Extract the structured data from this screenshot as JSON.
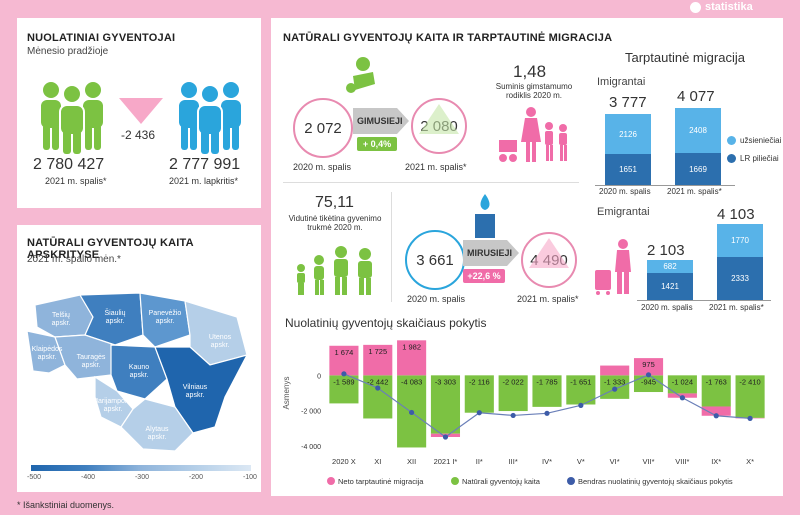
{
  "brand": "statistika",
  "footnote": "* Išankstiniai duomenys.",
  "resident": {
    "title": "NUOLATINIAI GYVENTOJAI",
    "subtitle": "Mėnesio pradžioje",
    "diff": "-2 436",
    "left_value": "2 780 427",
    "left_label": "2021 m. spalis*",
    "right_value": "2 777 991",
    "right_label": "2021 m. lapkritis*",
    "colors": {
      "left": "#7cc242",
      "right": "#2aa5dc",
      "arrow": "#f7a8c8"
    }
  },
  "map": {
    "title": "NATŪRALI GYVENTOJŲ KAITA APSKRITYSE",
    "subtitle": "2021 m. spalio mėn.*",
    "regions": [
      "Telšių apskr.",
      "Šiaulių apskr.",
      "Panevėžio apskr.",
      "Klaipėdos apskr.",
      "Utenos apskr.",
      "Tauragės apskr.",
      "Kauno apskr.",
      "Marijampolės apskr.",
      "Vilniaus apskr.",
      "Alytaus apskr."
    ],
    "scale": [
      "-500",
      "-400",
      "-300",
      "-200",
      "-100"
    ]
  },
  "natural": {
    "title": "NATŪRALI GYVENTOJŲ KAITA IR TARPTAUTINĖ MIGRACIJA",
    "births_label": "GIMUSIEJI",
    "births_prev": "2 072",
    "births_prev_label": "2020 m. spalis",
    "births_cur": "2 080",
    "births_cur_label": "2021 m. spalis*",
    "births_change": "+ 0,4%",
    "fertility_value": "1,48",
    "fertility_label": "Suminis gimstamumo rodiklis 2020 m.",
    "life_value": "75,11",
    "life_label": "Vidutinė tikėtina gyvenimo trukmė 2020 m.",
    "deaths_label": "MIRUSIEJI",
    "deaths_prev": "3 661",
    "deaths_prev_label": "2020 m. spalis",
    "deaths_cur": "4 490",
    "deaths_cur_label": "2021 m. spalis*",
    "deaths_change": "+22,6 %"
  },
  "migration": {
    "title": "Tarptautinė migracija",
    "imm_label": "Imigrantai",
    "emi_label": "Emigrantai",
    "imm": [
      {
        "total": "3 777",
        "foreign": 2126,
        "citizens": 1651,
        "label": "2020 m. spalis"
      },
      {
        "total": "4 077",
        "foreign": 2408,
        "citizens": 1669,
        "label": "2021 m. spalis*"
      }
    ],
    "emi": [
      {
        "total": "2 103",
        "foreign": 682,
        "citizens": 1421,
        "label": "2020 m. spalis"
      },
      {
        "total": "4 103",
        "foreign": 1770,
        "citizens": 2333,
        "label": "2021 m. spalis*"
      }
    ],
    "legend_foreign": "užsieniečiai",
    "legend_citizens": "LR piliečiai",
    "colors": {
      "foreign": "#58b3e8",
      "citizens": "#2c6fae"
    }
  },
  "chart_data": {
    "type": "bar",
    "title": "Nuolatinių gyventojų skaičiaus pokytis",
    "ylabel": "Asmenys",
    "ylim": [
      -4000,
      2000
    ],
    "yticks": [
      "0",
      "-2 000",
      "-4 000"
    ],
    "categories": [
      "2020 X",
      "XI",
      "XII",
      "2021 I*",
      "II*",
      "III*",
      "IV*",
      "V*",
      "VI*",
      "VII*",
      "VIII*",
      "IX*",
      "X*"
    ],
    "series": [
      {
        "name": "Neto tarptautinė migracija",
        "color": "#f06ca8",
        "values": [
          1674,
          1725,
          1982,
          -187,
          0,
          0,
          0,
          0,
          553,
          975,
          -245,
          -526,
          -26
        ],
        "labels": [
          "1 674",
          "1 725",
          "1 982",
          "",
          "",
          "",
          "",
          "",
          "",
          "975",
          "",
          "",
          ""
        ]
      },
      {
        "name": "Natūrali gyventojų kaita",
        "color": "#7cc242",
        "values": [
          -1589,
          -2442,
          -4083,
          -3303,
          -2116,
          -2022,
          -1785,
          -1651,
          -1333,
          -945,
          -1024,
          -1763,
          -2410
        ],
        "labels": [
          "-1 589",
          "-2 442",
          "-4 083",
          "-3 303",
          "-2 116",
          "-2 022",
          "-1 785",
          "-1 651",
          "-1 333",
          "-945",
          "-1 024",
          "-1 763",
          "-2 410"
        ]
      },
      {
        "name": "Bendras nuolatinių gyventojų skaičiaus pokytis",
        "color": "#3d5ca8",
        "values": [
          85,
          -717,
          -2101,
          -3490,
          -2116,
          -2270,
          -2150,
          -1700,
          -780,
          30,
          -1269,
          -2289,
          -2436
        ]
      }
    ]
  }
}
